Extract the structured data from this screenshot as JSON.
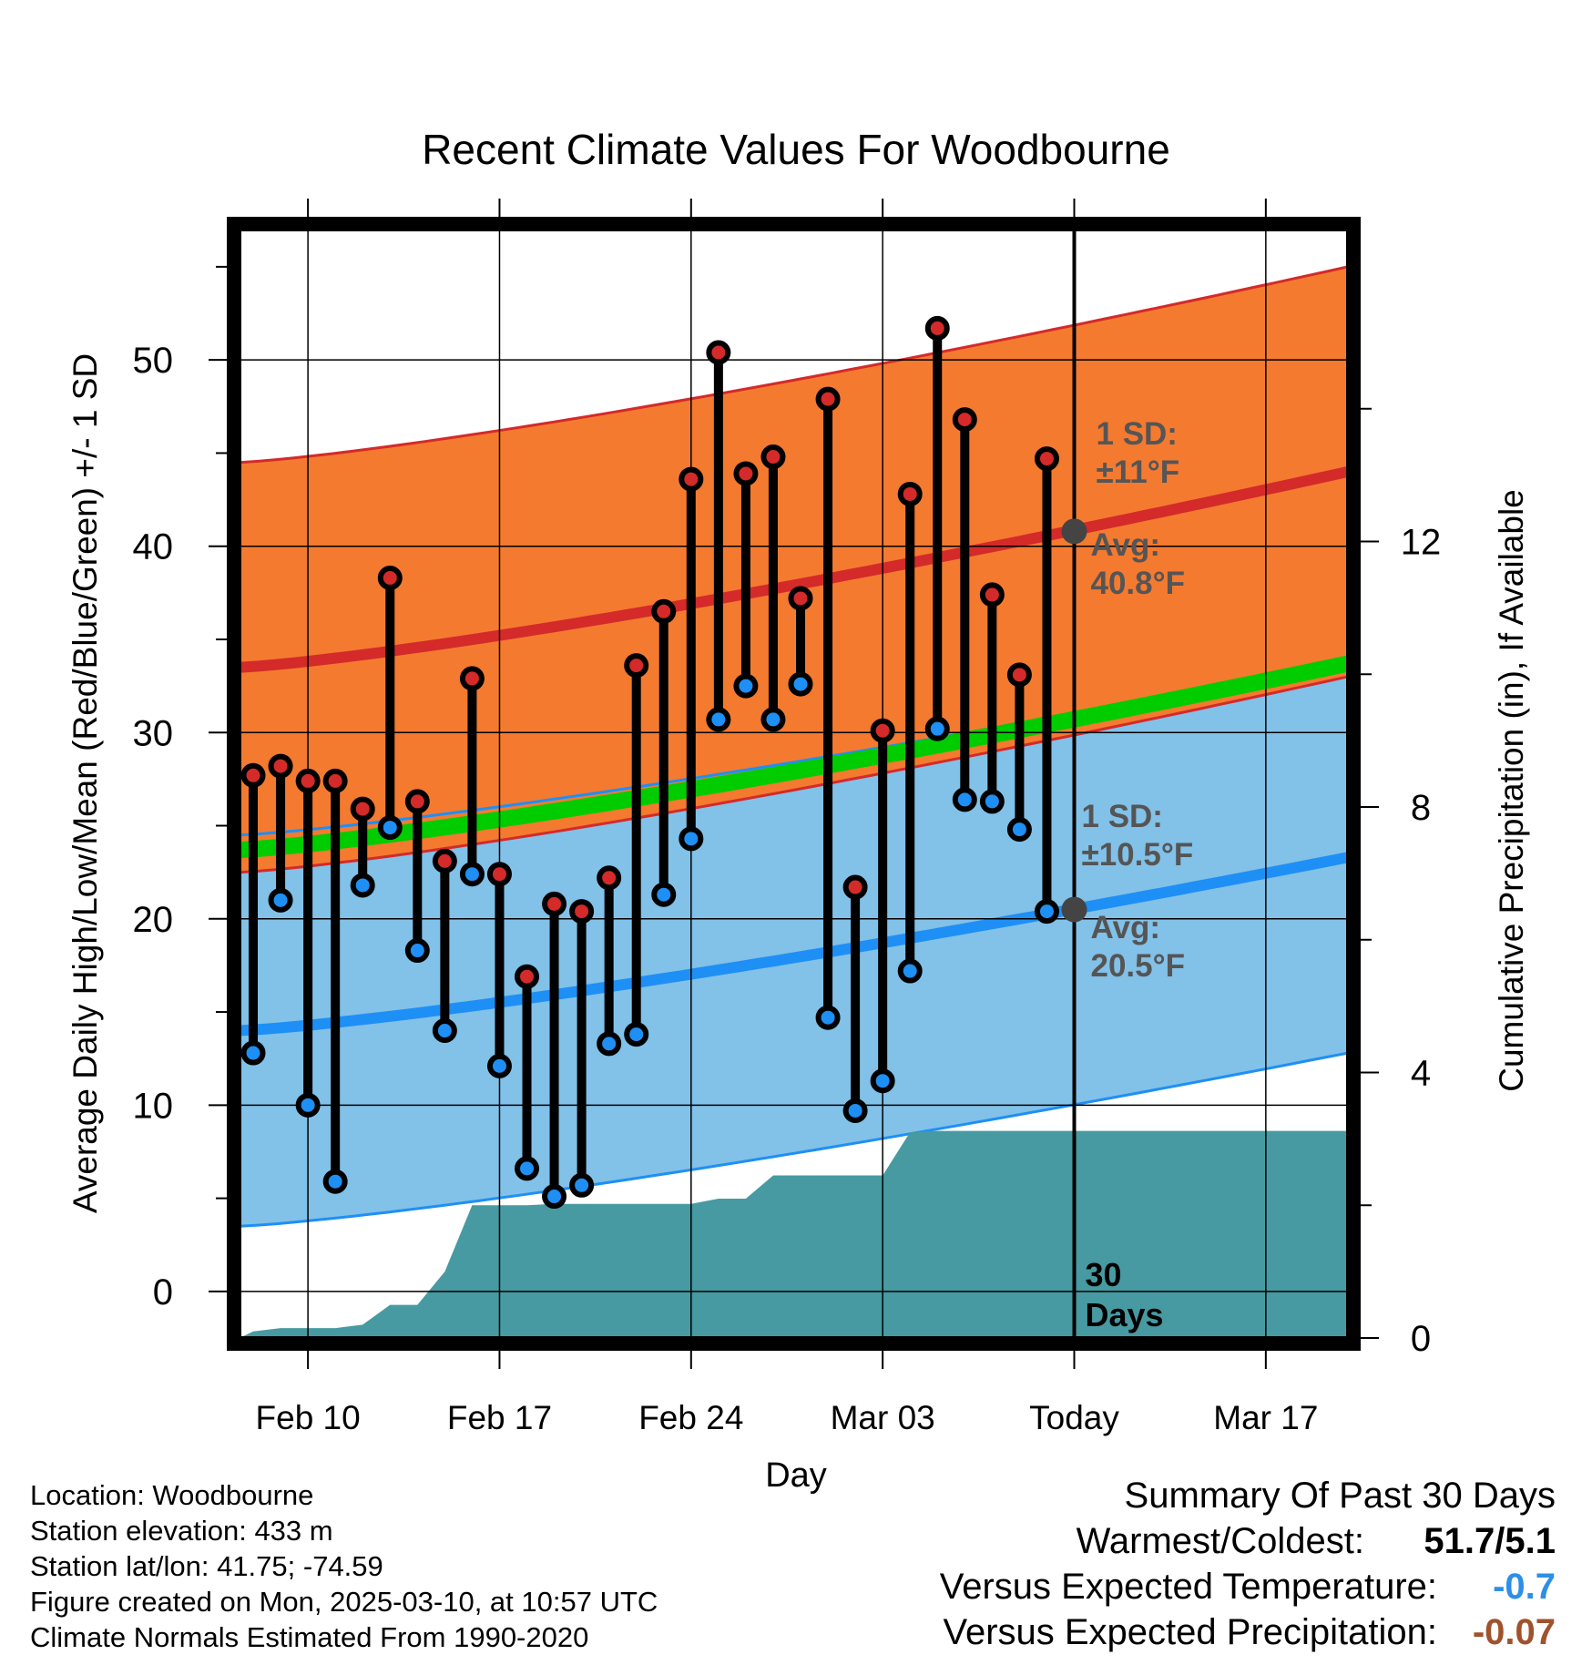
{
  "chart_data": {
    "type": "line",
    "title": "Recent Climate Values For Woodbourne",
    "xlabel": "Day",
    "ylabel_left": "Average Daily High/Low/Mean (Red/Blue/Green) +/- 1 SD",
    "ylabel_right": "Cumulative Precipitation (in), If Available",
    "x_ticks": [
      {
        "day": 2,
        "label": "Feb 10"
      },
      {
        "day": 9,
        "label": "Feb 17"
      },
      {
        "day": 16,
        "label": "Feb 24"
      },
      {
        "day": 23,
        "label": "Mar 03"
      },
      {
        "day": 30,
        "label": "Today"
      },
      {
        "day": 37,
        "label": "Mar 17"
      }
    ],
    "xlim": [
      -0.5,
      40
    ],
    "ylim": [
      -2.5,
      57
    ],
    "y_ticks": [
      0,
      10,
      20,
      30,
      40,
      50
    ],
    "precip_ylim": [
      0,
      16.7
    ],
    "precip_ticks": [
      0,
      4,
      8,
      12
    ],
    "today_day": 30,
    "days_label": [
      "30",
      "Days"
    ],
    "normals": {
      "high_mean_endpoints": [
        33.5,
        44.0
      ],
      "high_sd": 11,
      "low_mean_endpoints": [
        14.0,
        23.3
      ],
      "low_sd": 10.5,
      "mean_endpoints": [
        23.7,
        33.7
      ],
      "curve": 1.25
    },
    "annotations": {
      "high_sd_label": [
        "1 SD:",
        "±11°F"
      ],
      "high_avg_label": [
        "Avg:",
        "40.8°F"
      ],
      "low_sd_label": [
        "1 SD:",
        "±10.5°F"
      ],
      "low_avg_label": [
        "Avg:",
        "20.5°F"
      ],
      "high_avg_value": 40.8,
      "low_avg_value": 20.5
    },
    "series": [
      {
        "name": "High",
        "values": [
          27.7,
          28.2,
          27.4,
          27.4,
          25.9,
          38.3,
          26.3,
          23.1,
          32.9,
          22.4,
          16.9,
          20.8,
          20.4,
          22.2,
          33.6,
          36.5,
          43.6,
          50.4,
          43.9,
          44.8,
          37.2,
          47.9,
          21.7,
          30.1,
          42.8,
          51.7,
          46.8,
          37.4,
          33.1,
          44.7
        ]
      },
      {
        "name": "Low",
        "values": [
          12.8,
          21.0,
          10.0,
          5.9,
          21.8,
          24.9,
          18.3,
          14.0,
          22.4,
          12.1,
          6.6,
          5.1,
          5.7,
          13.3,
          13.8,
          21.3,
          24.3,
          30.7,
          32.5,
          30.7,
          32.6,
          14.7,
          9.7,
          11.3,
          17.2,
          30.2,
          26.4,
          26.3,
          24.8,
          20.4
        ]
      }
    ],
    "precip_cumulative": {
      "x": [
        -0.5,
        0,
        1,
        2,
        3,
        4,
        5,
        6,
        7,
        8,
        9,
        10,
        11,
        12,
        13,
        14,
        15,
        16,
        17,
        18,
        19,
        20,
        21,
        22,
        23,
        24,
        25,
        26,
        27,
        28,
        29,
        30,
        40
      ],
      "values": [
        0,
        0.1,
        0.15,
        0.15,
        0.15,
        0.2,
        0.5,
        0.5,
        1.0,
        2.0,
        2.0,
        2.0,
        2.02,
        2.02,
        2.02,
        2.02,
        2.02,
        2.02,
        2.1,
        2.1,
        2.45,
        2.45,
        2.45,
        2.45,
        2.45,
        3.1,
        3.12,
        3.12,
        3.12,
        3.12,
        3.12,
        3.12,
        3.12
      ]
    }
  },
  "footer": {
    "location": "Location: Woodbourne",
    "elevation": "Station elevation: 433 m",
    "latlon": "Station lat/lon: 41.75; -74.59",
    "created": "Figure created on Mon, 2025-03-10, at 10:57 UTC",
    "normals": "Climate Normals Estimated From 1990-2020"
  },
  "summary": {
    "title": "Summary Of Past 30 Days",
    "warmest_coldest_label": "Warmest/Coldest:",
    "warmest_coldest_value": "51.7/5.1",
    "temp_label": "Versus Expected Temperature:",
    "temp_value": "-0.7",
    "precip_label": "Versus Expected Precipitation:",
    "precip_value": "-0.07"
  },
  "colors": {
    "high_band": "#f47a30",
    "high_line": "#d42a2a",
    "low_band": "#82c1e8",
    "low_line": "#1e8ff5",
    "mean_line": "#00cc00",
    "overlap": "#8b1a1a",
    "precip": "#479aa1",
    "avg_dot": "#444444",
    "annotation_text": "#555555",
    "temp_value": "#2c8fe8",
    "precip_value": "#a0522d"
  }
}
